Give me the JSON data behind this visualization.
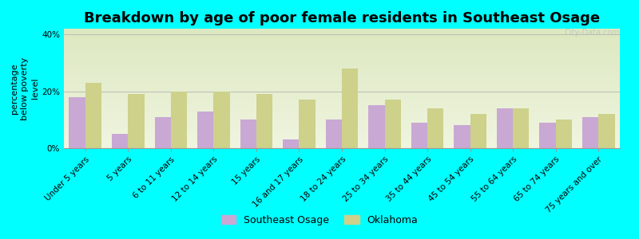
{
  "title": "Breakdown by age of poor female residents in Southeast Osage",
  "categories": [
    "Under 5 years",
    "5 years",
    "6 to 11 years",
    "12 to 14 years",
    "15 years",
    "16 and 17 years",
    "18 to 24 years",
    "25 to 34 years",
    "35 to 44 years",
    "45 to 54 years",
    "55 to 64 years",
    "65 to 74 years",
    "75 years and over"
  ],
  "southeast_osage": [
    18,
    5,
    11,
    13,
    10,
    3,
    10,
    15,
    9,
    8,
    14,
    9,
    11
  ],
  "oklahoma": [
    23,
    19,
    20,
    20,
    19,
    17,
    28,
    17,
    14,
    12,
    14,
    10,
    12
  ],
  "bar_color_osage": "#c9a8d4",
  "bar_color_oklahoma": "#cdd18a",
  "background_color": "#00ffff",
  "plot_bg_top": "#dce8c0",
  "plot_bg_bottom": "#f0f5e0",
  "ylabel": "percentage\nbelow poverty\nlevel",
  "ylim": [
    0,
    42
  ],
  "yticks": [
    0,
    20,
    40
  ],
  "ytick_labels": [
    "0%",
    "20%",
    "40%"
  ],
  "legend_osage": "Southeast Osage",
  "legend_oklahoma": "Oklahoma",
  "title_fontsize": 13,
  "axis_label_fontsize": 8,
  "tick_fontsize": 7.5
}
